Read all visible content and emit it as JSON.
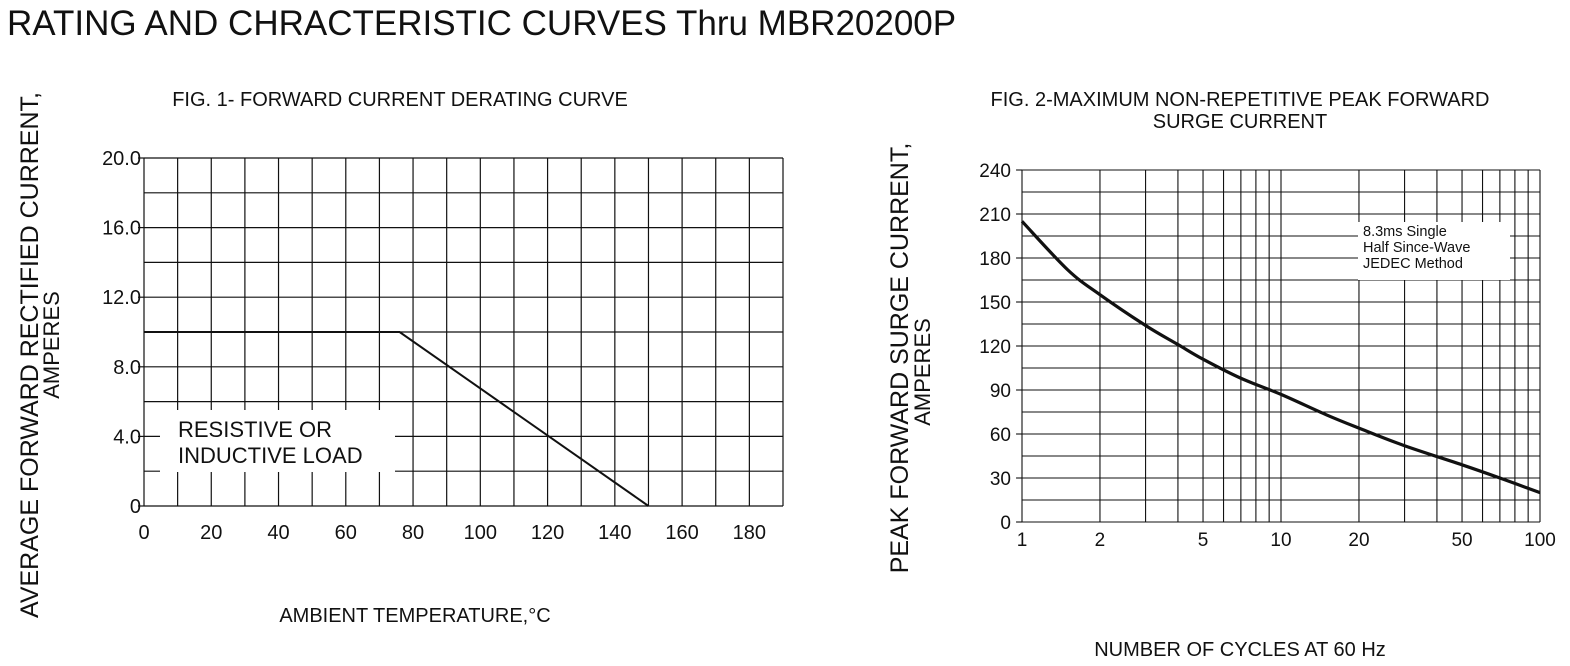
{
  "page": {
    "title": "RATING AND CHRACTERISTIC CURVES Thru MBR20200P"
  },
  "chart_data": [
    {
      "type": "line",
      "title": "FIG. 1- FORWARD CURRENT DERATING CURVE",
      "xlabel": "AMBIENT TEMPERATURE,°C",
      "ylabel": [
        "AVERAGE FORWARD RECTIFIED CURRENT,",
        "AMPERES"
      ],
      "xlim": [
        0,
        190
      ],
      "ylim": [
        0,
        20
      ],
      "xticks": [
        0,
        20,
        40,
        60,
        80,
        100,
        120,
        140,
        160,
        180
      ],
      "xtick_labels": [
        "0",
        "20",
        "40",
        "60",
        "80",
        "100",
        "120",
        "140",
        "160",
        "180"
      ],
      "yticks": [
        0,
        4,
        8,
        12,
        16,
        20
      ],
      "ytick_labels": [
        "0",
        "4.0",
        "8.0",
        "12.0",
        "16.0",
        "20.0"
      ],
      "grid": true,
      "annotation": [
        "RESISTIVE OR",
        "INDUCTIVE LOAD"
      ],
      "series": [
        {
          "x": [
            0,
            76,
            150
          ],
          "y": [
            10,
            10,
            0
          ]
        }
      ]
    },
    {
      "type": "line",
      "title": [
        "FIG. 2-MAXIMUM NON-REPETITIVE PEAK FORWARD",
        "SURGE CURRENT"
      ],
      "xlabel": "NUMBER OF CYCLES AT 60 Hz",
      "ylabel": [
        "PEAK  FORWARD SURGE CURRENT,",
        "AMPERES"
      ],
      "xscale": "log",
      "xlim": [
        1,
        100
      ],
      "ylim": [
        0,
        240
      ],
      "xticks": [
        1,
        2,
        5,
        10,
        20,
        50,
        100
      ],
      "xtick_labels": [
        "1",
        "2",
        "5",
        "10",
        "20",
        "50",
        "100"
      ],
      "yticks": [
        0,
        30,
        60,
        90,
        120,
        150,
        180,
        210,
        240
      ],
      "ytick_labels": [
        "0",
        "30",
        "60",
        "90",
        "120",
        "150",
        "180",
        "210",
        "240"
      ],
      "grid": true,
      "annotation": [
        "8.3ms Single",
        "Half Since-Wave",
        "JEDEC Method"
      ],
      "series": [
        {
          "x": [
            1,
            1.5,
            2,
            3,
            4,
            5,
            7,
            10,
            15,
            20,
            30,
            50,
            70,
            100
          ],
          "y": [
            205,
            172,
            155,
            134,
            121,
            111,
            98,
            87,
            73,
            64,
            52,
            39,
            30,
            20
          ]
        }
      ]
    }
  ]
}
